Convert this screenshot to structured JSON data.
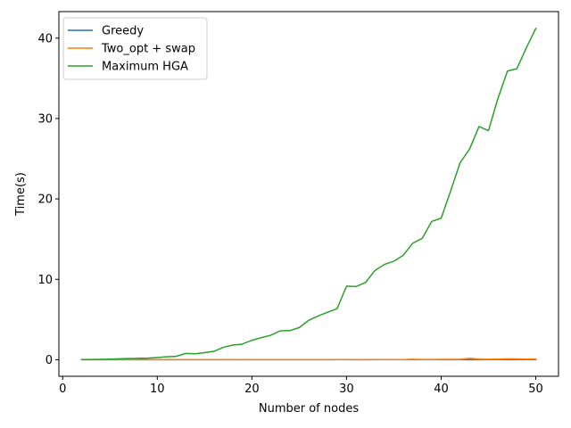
{
  "chart_data": {
    "type": "line",
    "xlabel": "Number of nodes",
    "ylabel": "Time(s)",
    "xlim": [
      -0.4,
      52.4
    ],
    "ylim": [
      -2.06,
      43.3
    ],
    "xticks": [
      0,
      10,
      20,
      30,
      40,
      50
    ],
    "yticks": [
      0,
      10,
      20,
      30,
      40
    ],
    "grid": false,
    "legend": "upper-left",
    "x": [
      2,
      3,
      4,
      5,
      6,
      7,
      8,
      9,
      10,
      11,
      12,
      13,
      14,
      15,
      16,
      17,
      18,
      19,
      20,
      21,
      22,
      23,
      24,
      25,
      26,
      27,
      28,
      29,
      30,
      31,
      32,
      33,
      34,
      35,
      36,
      37,
      38,
      39,
      40,
      41,
      42,
      43,
      44,
      45,
      46,
      47,
      48,
      49,
      50
    ],
    "series": [
      {
        "name": "Greedy",
        "color": "#1f77b4",
        "values": [
          0,
          0,
          0,
          0,
          0,
          0,
          0,
          0,
          0,
          0,
          0,
          0,
          0,
          0,
          0,
          0,
          0,
          0,
          0,
          0,
          0,
          0,
          0,
          0,
          0,
          0,
          0,
          0,
          0,
          0,
          0,
          0,
          0,
          0,
          0,
          0,
          0,
          0,
          0,
          0,
          0,
          0,
          0,
          0,
          0,
          0,
          0,
          0,
          0
        ]
      },
      {
        "name": "Two_opt + swap",
        "color": "#ff7f0e",
        "values": [
          0,
          0,
          0,
          0,
          0,
          0,
          0,
          0,
          0,
          0,
          0.01,
          0.01,
          0.01,
          0.01,
          0.01,
          0.01,
          0.01,
          0.01,
          0.01,
          0.01,
          0.01,
          0.01,
          0.01,
          0.01,
          0.01,
          0.01,
          0.01,
          0.02,
          0.02,
          0.01,
          0.01,
          0.02,
          0.02,
          0.02,
          0.02,
          0.06,
          0.03,
          0.03,
          0.04,
          0.04,
          0.05,
          0.18,
          0.08,
          0.06,
          0.08,
          0.12,
          0.1,
          0.08,
          0.08
        ]
      },
      {
        "name": "Maximum HGA",
        "color": "#2ca02c",
        "values": [
          0.02,
          0.03,
          0.05,
          0.08,
          0.11,
          0.14,
          0.17,
          0.2,
          0.27,
          0.36,
          0.42,
          0.78,
          0.74,
          0.88,
          1.05,
          1.55,
          1.82,
          1.95,
          2.42,
          2.75,
          3.05,
          3.6,
          3.62,
          4.0,
          4.9,
          5.45,
          5.9,
          6.35,
          9.15,
          9.1,
          9.6,
          11.1,
          11.85,
          12.25,
          13.0,
          14.5,
          15.1,
          17.2,
          17.6,
          21.0,
          24.5,
          26.2,
          29.0,
          28.5,
          32.5,
          35.9,
          36.2,
          38.8,
          41.2
        ]
      }
    ]
  }
}
